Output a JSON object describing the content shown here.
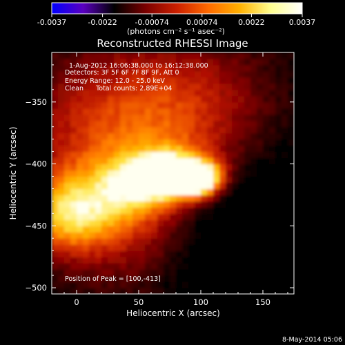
{
  "colorbar": {
    "ticks": [
      "-0.0037",
      "-0.0022",
      "-0.00074",
      "0.00074",
      "0.0022",
      "0.0037"
    ],
    "tick_values": [
      -0.0037,
      -0.0022,
      -0.00074,
      0.00074,
      0.0022,
      0.0037
    ],
    "range": [
      -0.0037,
      0.0037
    ],
    "unit_label": "(photons cm⁻² s⁻¹ asec⁻²)",
    "colormap": [
      "#0000ff",
      "#5a00c0",
      "#000000",
      "#7a0000",
      "#cc2000",
      "#ff6a00",
      "#ffb000",
      "#ffff90",
      "#ffffff"
    ]
  },
  "chart_data": {
    "type": "heatmap",
    "title": "Reconstructed RHESSI Image",
    "xlabel": "Heliocentric X (arcsec)",
    "ylabel": "Heliocentric Y (arcsec)",
    "xlim": [
      -20,
      175
    ],
    "ylim": [
      -505,
      -310
    ],
    "x_ticks": [
      0,
      50,
      100,
      150
    ],
    "y_ticks": [
      -350,
      -400,
      -450,
      -500
    ],
    "annotations": [
      "1-Aug-2012 16:06:38.000 to 16:12:38.000",
      "Detectors: 3F 5F 6F 7F 8F 9F, Att 0",
      "Energy Range: 12.0 - 25.0 keV",
      "Clean      Total counts: 2.89E+04"
    ],
    "peak_label": "Position of Peak = [100,-413]",
    "peak": {
      "x": 100,
      "y": -413
    },
    "colormap": [
      "#000000",
      "#3a0400",
      "#7a0000",
      "#b31200",
      "#e03c00",
      "#ff7a00",
      "#ffb400",
      "#ffe84a",
      "#fffff0"
    ]
  },
  "footer": {
    "timestamp": "8-May-2014 05:06"
  }
}
